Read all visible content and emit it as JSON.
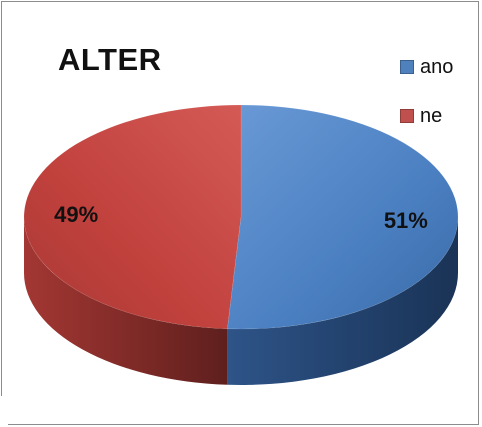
{
  "chart_data": {
    "type": "pie",
    "title": "ALTER",
    "categories": [
      "ano",
      "ne"
    ],
    "values": [
      51,
      49
    ],
    "data_labels": [
      "51%",
      "49%"
    ],
    "three_d": true,
    "legend_placement": "top-right",
    "series": [
      {
        "name": "ano",
        "value": 51,
        "color": "#4f81bd"
      },
      {
        "name": "ne",
        "value": 49,
        "color": "#c0504d"
      }
    ]
  },
  "legend": {
    "items": [
      {
        "label": "ano",
        "color": "#4f81bd"
      },
      {
        "label": "ne",
        "color": "#c0504d"
      }
    ]
  }
}
